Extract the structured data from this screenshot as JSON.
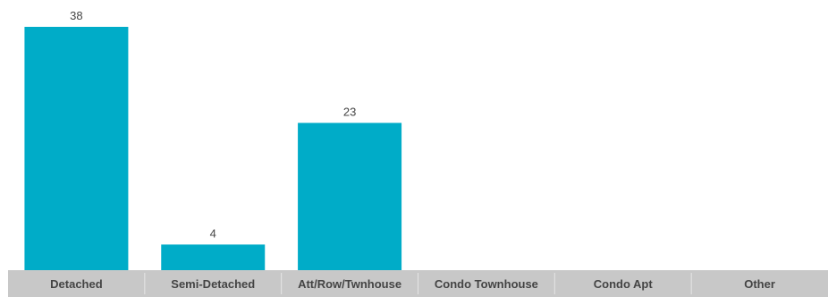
{
  "chart_data": {
    "type": "bar",
    "categories": [
      "Detached",
      "Semi-Detached",
      "Att/Row/Twnhouse",
      "Condo Townhouse",
      "Condo Apt",
      "Other"
    ],
    "values": [
      38,
      4,
      23,
      0,
      0,
      0
    ],
    "value_labels": [
      "38",
      "4",
      "23",
      "",
      "",
      ""
    ],
    "title": "",
    "xlabel": "",
    "ylabel": "",
    "ylim": [
      0,
      38
    ],
    "grid": false,
    "legend": "none"
  },
  "colors": {
    "bar": "#00acc8",
    "axis_band": "#c8c8c8",
    "separator": "#e6e6e6",
    "text": "#444444"
  }
}
